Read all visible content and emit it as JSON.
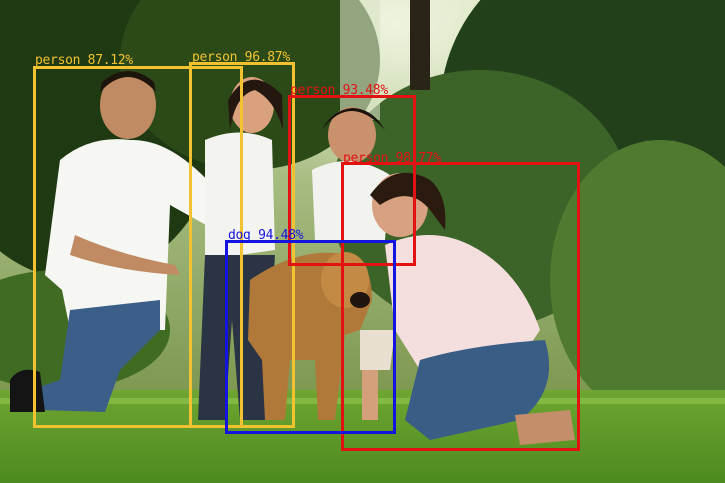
{
  "scene": {
    "description_icon": "photo-family-with-dog-in-park"
  },
  "colors": {
    "yellow": "#f2c230",
    "red": "#e31212",
    "blue": "#1414e0"
  },
  "detections": [
    {
      "id": "d0",
      "label": "person 87.12%",
      "color": "#f2c230"
    },
    {
      "id": "d1",
      "label": "person 96.87%",
      "color": "#f2c230"
    },
    {
      "id": "d2",
      "label": "person 93.48%",
      "color": "#e31212"
    },
    {
      "id": "d3",
      "label": "person 98.77%",
      "color": "#e31212"
    },
    {
      "id": "d4",
      "label": "dog 94.48%",
      "color": "#1414e0"
    }
  ]
}
